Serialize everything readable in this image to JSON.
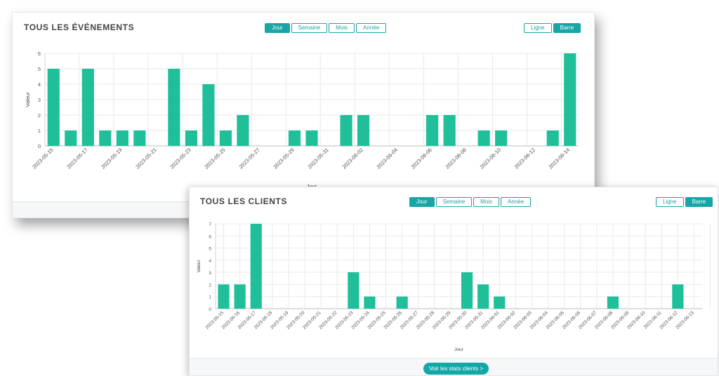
{
  "events_card": {
    "title": "TOUS LES ÉVÉNEMENTS",
    "period_buttons": [
      "Jour",
      "Semaine",
      "Mois",
      "Année"
    ],
    "active_period": "Jour",
    "type_buttons": [
      "Ligne",
      "Barre"
    ],
    "active_type": "Barre"
  },
  "clients_card": {
    "title": "TOUS LES CLIENTS",
    "period_buttons": [
      "Jour",
      "Semaine",
      "Mois",
      "Année"
    ],
    "active_period": "Jour",
    "type_buttons": [
      "Ligne",
      "Barre"
    ],
    "active_type": "Barre",
    "cta_label": "Voir les stats clients >"
  },
  "colors": {
    "bar": "#1fbf99",
    "accent": "#18a5a5",
    "grid": "#e9e9e9"
  },
  "chart_data": [
    {
      "type": "bar",
      "title": "TOUS LES ÉVÉNEMENTS",
      "xlabel": "Jour",
      "ylabel": "Valeur",
      "ylim": [
        0,
        6
      ],
      "yticks": [
        0,
        1,
        2,
        3,
        4,
        5,
        6
      ],
      "grid": true,
      "categories": [
        "2023-05-15",
        "2023-05-16",
        "2023-05-17",
        "2023-05-18",
        "2023-05-19",
        "2023-05-20",
        "2023-05-21",
        "2023-05-22",
        "2023-05-23",
        "2023-05-24",
        "2023-05-25",
        "2023-05-26",
        "2023-05-27",
        "2023-05-28",
        "2023-05-29",
        "2023-05-30",
        "2023-05-31",
        "2023-06-01",
        "2023-06-02",
        "2023-06-03",
        "2023-06-04",
        "2023-06-05",
        "2023-06-06",
        "2023-06-07",
        "2023-06-08",
        "2023-06-09",
        "2023-06-10",
        "2023-06-11",
        "2023-06-12",
        "2023-06-13",
        "2023-06-14"
      ],
      "values": [
        5,
        1,
        5,
        1,
        1,
        1,
        0,
        5,
        1,
        4,
        1,
        2,
        0,
        0,
        1,
        1,
        0,
        2,
        2,
        0,
        0,
        0,
        2,
        2,
        0,
        1,
        1,
        0,
        0,
        1,
        6
      ],
      "tick_labels": [
        "2023-05-15",
        "2023-05-17",
        "2023-05-19",
        "2023-05-21",
        "2023-05-23",
        "2023-05-25",
        "2023-05-27",
        "2023-05-29",
        "2023-05-31",
        "2023-06-02",
        "2023-06-04",
        "2023-06-06",
        "2023-06-08",
        "2023-06-10",
        "2023-06-12",
        "2023-06-14"
      ]
    },
    {
      "type": "bar",
      "title": "TOUS LES CLIENTS",
      "xlabel": "Jour",
      "ylabel": "Valeur",
      "ylim": [
        0,
        7
      ],
      "yticks": [
        0,
        1,
        2,
        3,
        4,
        5,
        6,
        7
      ],
      "grid": true,
      "categories": [
        "2023-05-15",
        "2023-05-16",
        "2023-05-17",
        "2023-05-18",
        "2023-05-19",
        "2023-05-20",
        "2023-05-21",
        "2023-05-22",
        "2023-05-23",
        "2023-05-24",
        "2023-05-25",
        "2023-05-26",
        "2023-05-27",
        "2023-05-28",
        "2023-05-29",
        "2023-05-30",
        "2023-05-31",
        "2023-06-01",
        "2023-06-02",
        "2023-06-03",
        "2023-06-04",
        "2023-06-05",
        "2023-06-06",
        "2023-06-07",
        "2023-06-08",
        "2023-06-09",
        "2023-06-10",
        "2023-06-11",
        "2023-06-12",
        "2023-06-13"
      ],
      "values": [
        2,
        2,
        7,
        0,
        0,
        0,
        0,
        0,
        3,
        1,
        0,
        1,
        0,
        0,
        0,
        3,
        2,
        1,
        0,
        0,
        0,
        0,
        0,
        0,
        1,
        0,
        0,
        0,
        2,
        0
      ],
      "tick_labels": [
        "2023-05-15",
        "2023-05-16",
        "2023-05-17",
        "2023-05-18",
        "2023-05-19",
        "2023-05-20",
        "2023-05-21",
        "2023-05-22",
        "2023-05-23",
        "2023-05-24",
        "2023-05-25",
        "2023-05-26",
        "2023-05-27",
        "2023-05-28",
        "2023-05-29",
        "2023-05-30",
        "2023-05-31",
        "2023-06-01",
        "2023-06-02",
        "2023-06-03",
        "2023-06-04",
        "2023-06-05",
        "2023-06-06",
        "2023-06-07",
        "2023-06-08",
        "2023-06-09",
        "2023-06-10",
        "2023-06-11",
        "2023-06-12",
        "2023-06-13"
      ]
    }
  ]
}
